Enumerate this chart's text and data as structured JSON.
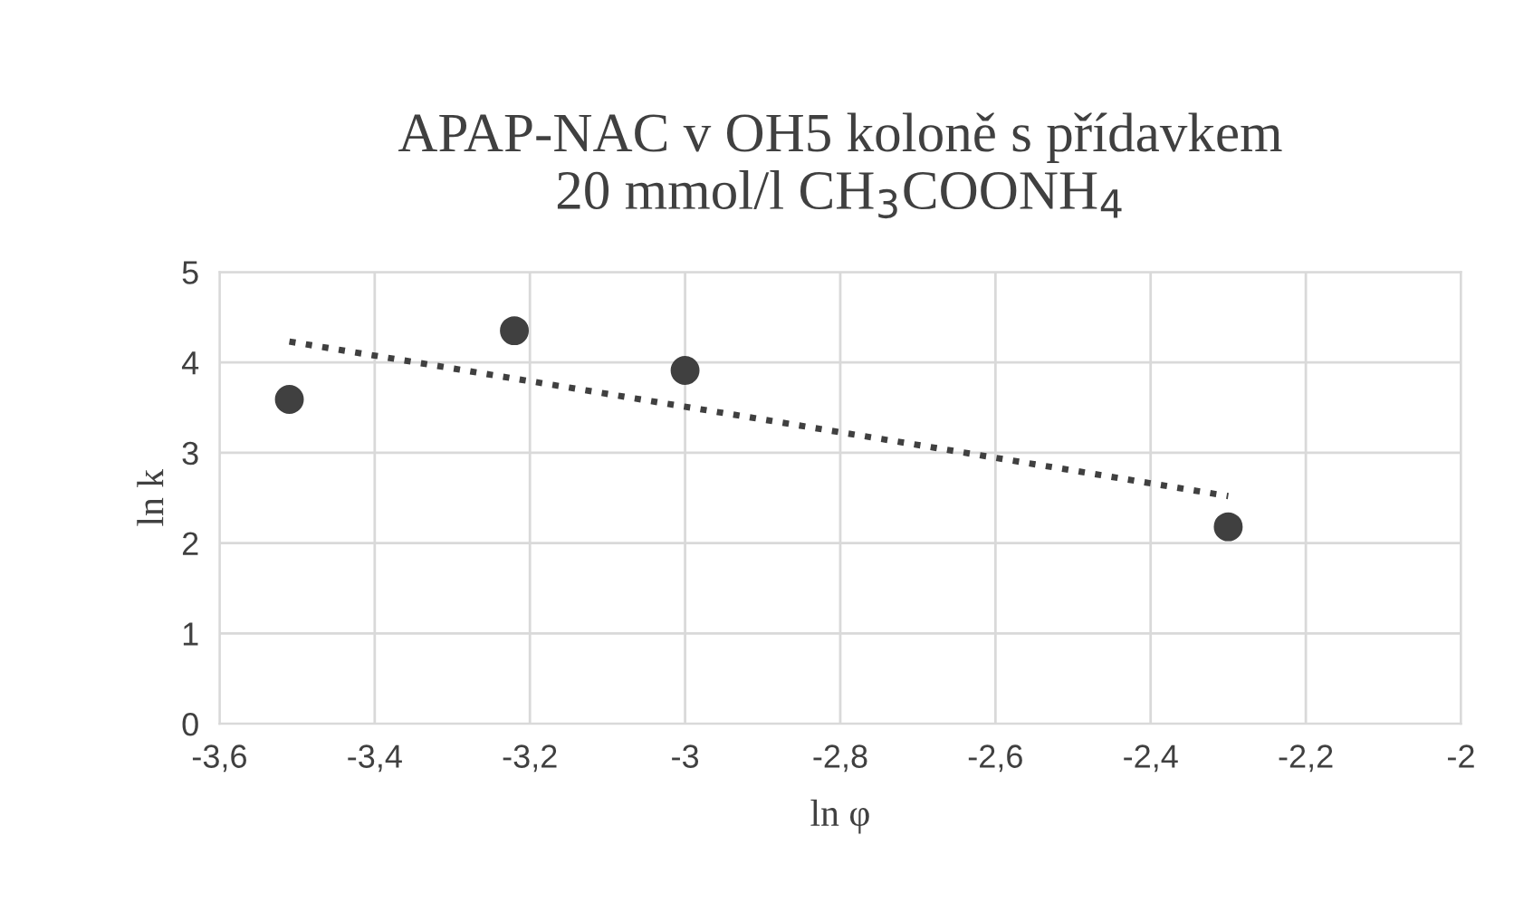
{
  "chart_data": {
    "type": "scatter",
    "title": "APAP-NAC v OH5 koloně s přídavkem\n20 mmol/l CH$_{3}$COONH$_{4}$",
    "xlabel": "ln φ",
    "ylabel": "ln k",
    "xlim": [
      -3.6,
      -2
    ],
    "xticks": [
      {
        "value": -3.6,
        "label": "-3,6"
      },
      {
        "value": -3.4,
        "label": "-3,4"
      },
      {
        "value": -3.2,
        "label": "-3,2"
      },
      -3,
      {
        "value": -2.8,
        "label": "-2,8"
      },
      {
        "value": -2.6,
        "label": "-2,6"
      },
      {
        "value": -2.4,
        "label": "-2,4"
      },
      {
        "value": -2.2,
        "label": "-2,2"
      },
      -2
    ],
    "ylim": [
      0,
      5
    ],
    "yticks": [
      0,
      1,
      2,
      3,
      4,
      5
    ],
    "grid": true,
    "legend": false,
    "series": [
      {
        "color": "#404040",
        "marker": "circle",
        "x": [
          -3.51,
          -3.22,
          -3.0,
          -2.3
        ],
        "values": [
          3.59,
          4.35,
          3.91,
          2.18
        ]
      },
      {
        "type": "line",
        "color": "#404040",
        "line_style": "dotted",
        "marker": "none",
        "x": [
          -3.51,
          -2.3
        ],
        "values": [
          4.23,
          2.52
        ]
      }
    ]
  }
}
